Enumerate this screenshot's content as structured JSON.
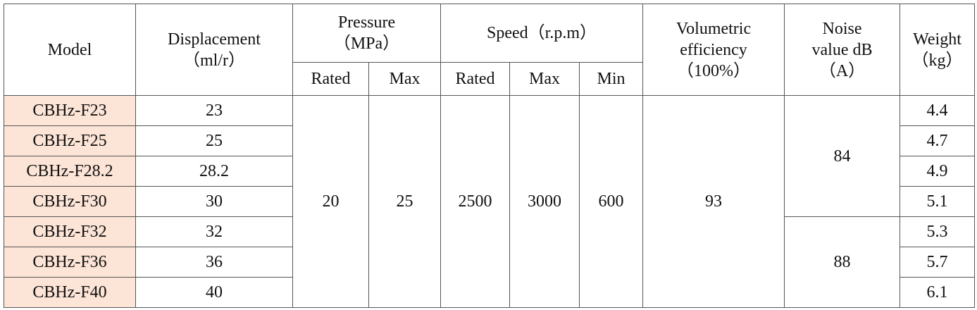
{
  "table": {
    "header": {
      "model": "Model",
      "displacement": [
        "Displacement",
        "（ml/r）"
      ],
      "pressure": [
        "Pressure",
        "（MPa）"
      ],
      "speed": "Speed（r.p.m）",
      "volumetric_efficiency": [
        "Volumetric",
        "efficiency",
        "（100%）"
      ],
      "noise": [
        "Noise",
        "value dB",
        "（A）"
      ],
      "weight": [
        "Weight",
        "（kg）"
      ],
      "pressure_rated": "Rated",
      "pressure_max": "Max",
      "speed_rated": "Rated",
      "speed_max": "Max",
      "speed_min": "Min"
    },
    "rows": [
      [
        "CBHz-F23",
        "23",
        "4.4"
      ],
      [
        "CBHz-F25",
        "25",
        "4.7"
      ],
      [
        "CBHz-F28.2",
        "28.2",
        "4.9"
      ],
      [
        "CBHz-F30",
        "30",
        "5.1"
      ],
      [
        "CBHz-F32",
        "32",
        "5.3"
      ],
      [
        "CBHz-F36",
        "36",
        "5.7"
      ],
      [
        "CBHz-F40",
        "40",
        "6.1"
      ]
    ],
    "shared": {
      "pressure_rated": "20",
      "pressure_max": "25",
      "speed_rated": "2500",
      "speed_max": "3000",
      "speed_min": "600",
      "volumetric_efficiency": "93",
      "noise": [
        "84",
        "88"
      ]
    }
  }
}
